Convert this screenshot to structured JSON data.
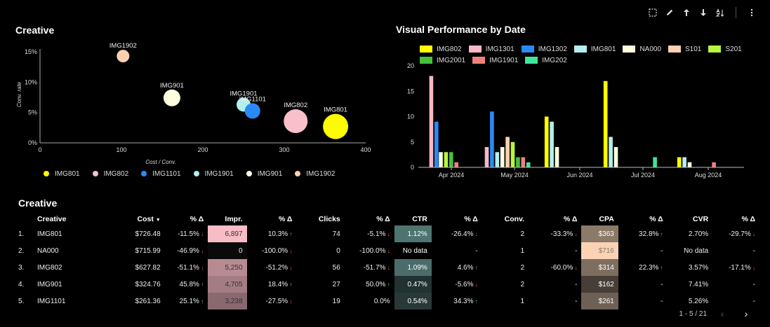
{
  "toolbar": {
    "icons": [
      "select-icon",
      "pencil-icon",
      "arrow-up-icon",
      "arrow-down-icon",
      "sort-az-icon",
      "more-icon"
    ]
  },
  "scatter_title": "Creative",
  "bar_title": "Visual Performance by Date",
  "table_title": "Creative",
  "chart_data": [
    {
      "type": "scatter",
      "title": "Creative",
      "xlabel": "Cost / Conv.",
      "ylabel": "Conv. rate",
      "xlim": [
        0,
        400
      ],
      "ylim": [
        0,
        15
      ],
      "x_ticks": [
        0,
        100,
        200,
        300,
        400
      ],
      "x_tick_labels": [
        "0",
        "100",
        "200",
        "300",
        "400"
      ],
      "y_ticks": [
        0,
        5,
        10,
        15
      ],
      "y_tick_labels": [
        "0%",
        "5%",
        "10%",
        "15%"
      ],
      "legend_position": "bottom",
      "points": [
        {
          "label": "IMG1902",
          "x": 102,
          "y": 14.3,
          "size": 9,
          "color": "#fdd0b1"
        },
        {
          "label": "IMG901",
          "x": 162,
          "y": 7.41,
          "size": 12,
          "color": "#fffde0"
        },
        {
          "label": "IMG1901",
          "x": 250,
          "y": 6.3,
          "size": 10,
          "color": "#b3efef"
        },
        {
          "label": "IMG1101",
          "x": 261,
          "y": 5.26,
          "size": 11,
          "color": "#2a8af5"
        },
        {
          "label": "IMG802",
          "x": 314,
          "y": 3.57,
          "size": 17,
          "color": "#f9c0cb"
        },
        {
          "label": "IMG801",
          "x": 363,
          "y": 2.7,
          "size": 18,
          "color": "#fffc00"
        }
      ],
      "legend": [
        {
          "name": "IMG801",
          "color": "#fffc00"
        },
        {
          "name": "IMG802",
          "color": "#f9c0cb"
        },
        {
          "name": "IMG1101",
          "color": "#2a8af5"
        },
        {
          "name": "IMG1901",
          "color": "#b3efef"
        },
        {
          "name": "IMG901",
          "color": "#fffde0"
        },
        {
          "name": "IMG1902",
          "color": "#fdd0b1"
        }
      ]
    },
    {
      "type": "bar",
      "title": "Visual Performance by Date",
      "ylim": [
        0,
        20
      ],
      "y_ticks": [
        0,
        5,
        10,
        15,
        20
      ],
      "y_tick_labels": [
        "0",
        "5",
        "10",
        "15",
        "20"
      ],
      "x_tick_labels": [
        "Apr 2024",
        "May 2024",
        "Jun 2024",
        "Jul 2024",
        "Aug 2024"
      ],
      "legend_position": "top",
      "series": [
        {
          "name": "IMG802",
          "color": "#ffff00"
        },
        {
          "name": "IMG1301",
          "color": "#f9b8c4"
        },
        {
          "name": "IMG1302",
          "color": "#2a8af5"
        },
        {
          "name": "IMG801",
          "color": "#b3efef"
        },
        {
          "name": "NA000",
          "color": "#fffde0"
        },
        {
          "name": "S101",
          "color": "#fdd0b1"
        },
        {
          "name": "S201",
          "color": "#b8f53c"
        },
        {
          "name": "IMG2001",
          "color": "#44c23e"
        },
        {
          "name": "IMG1901",
          "color": "#f08080"
        },
        {
          "name": "IMG202",
          "color": "#3ee69a"
        }
      ],
      "groups": [
        {
          "date": "2024-03-24",
          "bars": [
            {
              "series": "IMG1301",
              "value": 18
            },
            {
              "series": "IMG1302",
              "value": 9
            }
          ]
        },
        {
          "date": "2024-03-31",
          "bars": [
            {
              "series": "NA000",
              "value": 3
            },
            {
              "series": "S201",
              "value": 3
            },
            {
              "series": "IMG2001",
              "value": 3
            },
            {
              "series": "IMG1901",
              "value": 1
            }
          ]
        },
        {
          "date": "2024-04-28",
          "bars": [
            {
              "series": "IMG1301",
              "value": 4
            },
            {
              "series": "IMG1302",
              "value": 11
            },
            {
              "series": "IMG801",
              "value": 3
            },
            {
              "series": "NA000",
              "value": 4
            },
            {
              "series": "S101",
              "value": 6
            },
            {
              "series": "S201",
              "value": 5
            },
            {
              "series": "IMG2001",
              "value": 2
            },
            {
              "series": "IMG1901",
              "value": 2
            },
            {
              "series": "IMG202",
              "value": 1
            }
          ]
        },
        {
          "date": "2024-05-19",
          "bars": [
            {
              "series": "IMG802",
              "value": 10
            },
            {
              "series": "IMG801",
              "value": 9
            },
            {
              "series": "NA000",
              "value": 4
            }
          ]
        },
        {
          "date": "2024-06-16",
          "bars": [
            {
              "series": "IMG802",
              "value": 17
            },
            {
              "series": "IMG801",
              "value": 6
            },
            {
              "series": "NA000",
              "value": 4
            }
          ]
        },
        {
          "date": "2024-07-07",
          "bars": [
            {
              "series": "IMG202",
              "value": 2
            }
          ]
        },
        {
          "date": "2024-07-21",
          "bars": [
            {
              "series": "IMG802",
              "value": 2
            },
            {
              "series": "IMG801",
              "value": 2
            },
            {
              "series": "NA000",
              "value": 1
            }
          ]
        },
        {
          "date": "2024-08-04",
          "bars": [
            {
              "series": "IMG1901",
              "value": 1
            }
          ]
        }
      ]
    }
  ],
  "table": {
    "columns": [
      "",
      "Creative",
      "Cost",
      "% Δ",
      "Impr.",
      "% Δ",
      "Clicks",
      "% Δ",
      "CTR",
      "% Δ",
      "Conv.",
      "% Δ",
      "CPA",
      "% Δ",
      "CVR",
      "% Δ"
    ],
    "sort_indicator": "▼",
    "rows": [
      {
        "num": "1.",
        "creative": "IMG801",
        "cost": "$726.48",
        "cost_d": "-11.5%",
        "cost_dir": "down",
        "impr": "6,897",
        "impr_bg": "#f7bcc6",
        "impr_fg": "#333333",
        "impr_d": "10.3%",
        "impr_dir": "up",
        "clicks": "74",
        "clicks_d": "-5.1%",
        "clicks_dir": "down",
        "ctr": "1.12%",
        "ctr_bg": "#4e7470",
        "ctr_d": "-26.4%",
        "ctr_dir": "down",
        "conv": "2",
        "conv_d": "-33.3%",
        "conv_dir": "down",
        "cpa": "$363",
        "cpa_bg": "#8c7a68",
        "cpa_d": "32.8%",
        "cpa_dir": "up",
        "cvr": "2.70%",
        "cvr_d": "-29.7%",
        "cvr_dir": "down"
      },
      {
        "num": "2.",
        "creative": "NA000",
        "cost": "$715.99",
        "cost_d": "-46.9%",
        "cost_dir": "down",
        "impr": "0",
        "impr_bg": "#0a0a0a",
        "impr_fg": "#eeeeee",
        "impr_d": "-100.0%",
        "impr_dir": "down",
        "clicks": "0",
        "clicks_d": "-100.0%",
        "clicks_dir": "down",
        "ctr": "No data",
        "ctr_bg": "",
        "ctr_d": "-",
        "ctr_dir": "",
        "conv": "1",
        "conv_d": "-",
        "conv_dir": "",
        "cpa": "$716",
        "cpa_bg": "#fbd3b4",
        "cpa_d": "-",
        "cpa_dir": "",
        "cvr": "No data",
        "cvr_d": "-",
        "cvr_dir": ""
      },
      {
        "num": "3.",
        "creative": "IMG802",
        "cost": "$627.82",
        "cost_d": "-51.1%",
        "cost_dir": "down",
        "impr": "5,250",
        "impr_bg": "#b88b93",
        "impr_fg": "#333333",
        "impr_d": "-51.2%",
        "impr_dir": "down",
        "clicks": "56",
        "clicks_d": "-51.7%",
        "clicks_dir": "down",
        "ctr": "1.09%",
        "ctr_bg": "#4a6d6a",
        "ctr_d": "4.6%",
        "ctr_dir": "up",
        "conv": "2",
        "conv_d": "-60.0%",
        "conv_dir": "down",
        "cpa": "$314",
        "cpa_bg": "#7e6e60",
        "cpa_d": "22.3%",
        "cpa_dir": "up",
        "cvr": "3.57%",
        "cvr_d": "-17.1%",
        "cvr_dir": "down"
      },
      {
        "num": "4.",
        "creative": "IMG901",
        "cost": "$324.76",
        "cost_d": "45.8%",
        "cost_dir": "up",
        "impr": "4,705",
        "impr_bg": "#a47d84",
        "impr_fg": "#333333",
        "impr_d": "18.4%",
        "impr_dir": "up",
        "clicks": "27",
        "clicks_d": "50.0%",
        "clicks_dir": "up",
        "ctr": "0.47%",
        "ctr_bg": "#223230",
        "ctr_d": "-5.6%",
        "ctr_dir": "down",
        "conv": "2",
        "conv_d": "-",
        "conv_dir": "",
        "cpa": "$162",
        "cpa_bg": "#463e37",
        "cpa_d": "-",
        "cpa_dir": "",
        "cvr": "7.41%",
        "cvr_d": "-",
        "cvr_dir": ""
      },
      {
        "num": "5.",
        "creative": "IMG1101",
        "cost": "$261.36",
        "cost_d": "25.1%",
        "cost_dir": "up",
        "impr": "3,238",
        "impr_bg": "#8a6870",
        "impr_fg": "#333333",
        "impr_d": "-27.5%",
        "impr_dir": "down",
        "clicks": "19",
        "clicks_d": "0.0%",
        "clicks_dir": "",
        "ctr": "0.54%",
        "ctr_bg": "#283938",
        "ctr_d": "34.3%",
        "ctr_dir": "up",
        "conv": "1",
        "conv_d": "-",
        "conv_dir": "",
        "cpa": "$261",
        "cpa_bg": "#6e6054",
        "cpa_d": "-",
        "cpa_dir": "",
        "cvr": "5.26%",
        "cvr_d": "-",
        "cvr_dir": ""
      }
    ]
  },
  "pager": {
    "range": "1 - 5 / 21"
  }
}
